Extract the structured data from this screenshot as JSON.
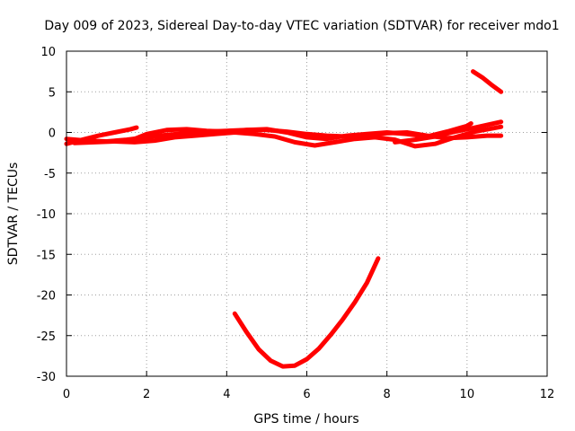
{
  "chart_data": {
    "type": "line",
    "title": "Day 009 of 2023, Sidereal Day-to-day VTEC variation (SDTVAR) for receiver mdo1",
    "xlabel": "GPS time / hours",
    "ylabel": "SDTVAR / TECUs",
    "xlim": [
      0,
      12
    ],
    "ylim": [
      -30,
      10
    ],
    "x_ticks": [
      0,
      2,
      4,
      6,
      8,
      10,
      12
    ],
    "y_ticks": [
      -30,
      -25,
      -20,
      -15,
      -10,
      -5,
      0,
      5,
      10
    ],
    "grid": true,
    "legend": "none",
    "series_color": "#ff0000",
    "series": [
      {
        "values": [
          [
            0.0,
            -1.4
          ],
          [
            0.4,
            -0.9
          ],
          [
            0.8,
            -0.4
          ],
          [
            1.2,
            0.0
          ],
          [
            1.6,
            0.4
          ],
          [
            1.75,
            0.6
          ]
        ]
      },
      {
        "values": [
          [
            0.0,
            -0.8
          ],
          [
            0.5,
            -1.0
          ],
          [
            1.0,
            -1.1
          ],
          [
            1.5,
            -0.9
          ],
          [
            2.0,
            -0.6
          ],
          [
            2.5,
            -0.3
          ],
          [
            3.0,
            -0.1
          ],
          [
            3.5,
            0.1
          ],
          [
            4.0,
            0.2
          ],
          [
            4.5,
            0.3
          ],
          [
            5.0,
            0.3
          ],
          [
            5.5,
            0.1
          ],
          [
            6.0,
            -0.2
          ],
          [
            6.5,
            -0.4
          ],
          [
            7.0,
            -0.5
          ],
          [
            7.5,
            -0.3
          ],
          [
            8.0,
            -0.1
          ],
          [
            8.5,
            0.0
          ],
          [
            9.0,
            -0.4
          ],
          [
            9.5,
            -0.7
          ],
          [
            10.0,
            -0.6
          ],
          [
            10.5,
            -0.4
          ],
          [
            10.85,
            -0.4
          ]
        ]
      },
      {
        "values": [
          [
            0.2,
            -1.3
          ],
          [
            0.7,
            -1.2
          ],
          [
            1.2,
            -1.1
          ],
          [
            1.7,
            -1.2
          ],
          [
            2.2,
            -1.0
          ],
          [
            2.7,
            -0.6
          ],
          [
            3.2,
            -0.4
          ],
          [
            3.7,
            -0.2
          ],
          [
            4.2,
            0.0
          ],
          [
            4.7,
            -0.2
          ],
          [
            5.2,
            -0.5
          ],
          [
            5.7,
            -1.2
          ],
          [
            6.2,
            -1.6
          ],
          [
            6.7,
            -1.2
          ],
          [
            7.2,
            -0.8
          ],
          [
            7.7,
            -0.6
          ],
          [
            8.2,
            -0.9
          ],
          [
            8.7,
            -1.7
          ],
          [
            9.2,
            -1.4
          ],
          [
            9.7,
            -0.6
          ],
          [
            10.2,
            0.1
          ],
          [
            10.85,
            0.7
          ]
        ]
      },
      {
        "values": [
          [
            1.6,
            -1.0
          ],
          [
            2.0,
            -0.2
          ],
          [
            2.5,
            0.3
          ],
          [
            3.0,
            0.4
          ],
          [
            3.5,
            0.2
          ],
          [
            4.0,
            0.1
          ],
          [
            4.5,
            0.3
          ],
          [
            5.0,
            0.4
          ],
          [
            5.5,
            0.0
          ],
          [
            6.0,
            -0.6
          ],
          [
            6.5,
            -0.8
          ],
          [
            7.0,
            -0.4
          ],
          [
            7.5,
            -0.2
          ],
          [
            8.0,
            0.0
          ],
          [
            8.5,
            -0.2
          ],
          [
            9.0,
            -0.5
          ],
          [
            9.5,
            0.1
          ],
          [
            10.0,
            0.8
          ],
          [
            10.1,
            1.1
          ]
        ]
      },
      {
        "values": [
          [
            8.2,
            -1.2
          ],
          [
            8.7,
            -0.9
          ],
          [
            9.2,
            -0.5
          ],
          [
            9.7,
            0.1
          ],
          [
            10.2,
            0.6
          ],
          [
            10.85,
            1.3
          ]
        ]
      },
      {
        "values": [
          [
            10.15,
            7.5
          ],
          [
            10.4,
            6.7
          ],
          [
            10.6,
            5.9
          ],
          [
            10.85,
            5.0
          ]
        ]
      },
      {
        "values": [
          [
            4.2,
            -22.3
          ],
          [
            4.5,
            -24.6
          ],
          [
            4.8,
            -26.7
          ],
          [
            5.1,
            -28.1
          ],
          [
            5.4,
            -28.8
          ],
          [
            5.7,
            -28.7
          ],
          [
            6.0,
            -27.9
          ],
          [
            6.3,
            -26.6
          ],
          [
            6.6,
            -24.9
          ],
          [
            6.9,
            -23.0
          ],
          [
            7.2,
            -20.9
          ],
          [
            7.5,
            -18.5
          ],
          [
            7.78,
            -15.5
          ]
        ]
      }
    ]
  }
}
